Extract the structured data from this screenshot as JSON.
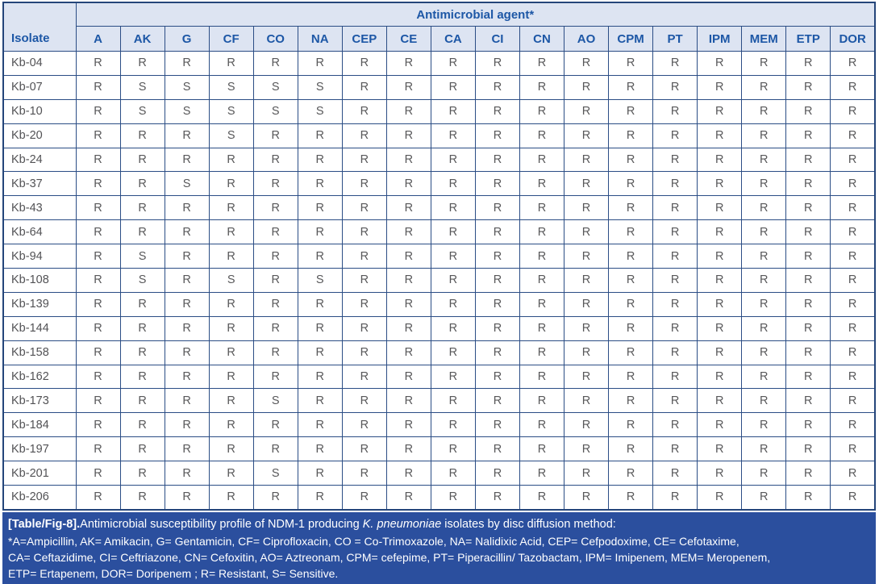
{
  "table": {
    "header": {
      "isolate_label": "Isolate",
      "group_label": "Antimicrobial agent*",
      "agents": [
        "A",
        "AK",
        "G",
        "CF",
        "CO",
        "NA",
        "CEP",
        "CE",
        "CA",
        "CI",
        "CN",
        "AO",
        "CPM",
        "PT",
        "IPM",
        "MEM",
        "ETP",
        "DOR"
      ]
    },
    "rows": [
      {
        "isolate": "Kb-04",
        "values": [
          "R",
          "R",
          "R",
          "R",
          "R",
          "R",
          "R",
          "R",
          "R",
          "R",
          "R",
          "R",
          "R",
          "R",
          "R",
          "R",
          "R",
          "R"
        ]
      },
      {
        "isolate": "Kb-07",
        "values": [
          "R",
          "S",
          "S",
          "S",
          "S",
          "S",
          "R",
          "R",
          "R",
          "R",
          "R",
          "R",
          "R",
          "R",
          "R",
          "R",
          "R",
          "R"
        ]
      },
      {
        "isolate": "Kb-10",
        "values": [
          "R",
          "S",
          "S",
          "S",
          "S",
          "S",
          "R",
          "R",
          "R",
          "R",
          "R",
          "R",
          "R",
          "R",
          "R",
          "R",
          "R",
          "R"
        ]
      },
      {
        "isolate": "Kb-20",
        "values": [
          "R",
          "R",
          "R",
          "S",
          "R",
          "R",
          "R",
          "R",
          "R",
          "R",
          "R",
          "R",
          "R",
          "R",
          "R",
          "R",
          "R",
          "R"
        ]
      },
      {
        "isolate": "Kb-24",
        "values": [
          "R",
          "R",
          "R",
          "R",
          "R",
          "R",
          "R",
          "R",
          "R",
          "R",
          "R",
          "R",
          "R",
          "R",
          "R",
          "R",
          "R",
          "R"
        ]
      },
      {
        "isolate": "Kb-37",
        "values": [
          "R",
          "R",
          "S",
          "R",
          "R",
          "R",
          "R",
          "R",
          "R",
          "R",
          "R",
          "R",
          "R",
          "R",
          "R",
          "R",
          "R",
          "R"
        ]
      },
      {
        "isolate": "Kb-43",
        "values": [
          "R",
          "R",
          "R",
          "R",
          "R",
          "R",
          "R",
          "R",
          "R",
          "R",
          "R",
          "R",
          "R",
          "R",
          "R",
          "R",
          "R",
          "R"
        ]
      },
      {
        "isolate": "Kb-64",
        "values": [
          "R",
          "R",
          "R",
          "R",
          "R",
          "R",
          "R",
          "R",
          "R",
          "R",
          "R",
          "R",
          "R",
          "R",
          "R",
          "R",
          "R",
          "R"
        ]
      },
      {
        "isolate": "Kb-94",
        "values": [
          "R",
          "S",
          "R",
          "R",
          "R",
          "R",
          "R",
          "R",
          "R",
          "R",
          "R",
          "R",
          "R",
          "R",
          "R",
          "R",
          "R",
          "R"
        ]
      },
      {
        "isolate": "Kb-108",
        "values": [
          "R",
          "S",
          "R",
          "S",
          "R",
          "S",
          "R",
          "R",
          "R",
          "R",
          "R",
          "R",
          "R",
          "R",
          "R",
          "R",
          "R",
          "R"
        ]
      },
      {
        "isolate": "Kb-139",
        "values": [
          "R",
          "R",
          "R",
          "R",
          "R",
          "R",
          "R",
          "R",
          "R",
          "R",
          "R",
          "R",
          "R",
          "R",
          "R",
          "R",
          "R",
          "R"
        ]
      },
      {
        "isolate": "Kb-144",
        "values": [
          "R",
          "R",
          "R",
          "R",
          "R",
          "R",
          "R",
          "R",
          "R",
          "R",
          "R",
          "R",
          "R",
          "R",
          "R",
          "R",
          "R",
          "R"
        ]
      },
      {
        "isolate": "Kb-158",
        "values": [
          "R",
          "R",
          "R",
          "R",
          "R",
          "R",
          "R",
          "R",
          "R",
          "R",
          "R",
          "R",
          "R",
          "R",
          "R",
          "R",
          "R",
          "R"
        ]
      },
      {
        "isolate": "Kb-162",
        "values": [
          "R",
          "R",
          "R",
          "R",
          "R",
          "R",
          "R",
          "R",
          "R",
          "R",
          "R",
          "R",
          "R",
          "R",
          "R",
          "R",
          "R",
          "R"
        ]
      },
      {
        "isolate": "Kb-173",
        "values": [
          "R",
          "R",
          "R",
          "R",
          "S",
          "R",
          "R",
          "R",
          "R",
          "R",
          "R",
          "R",
          "R",
          "R",
          "R",
          "R",
          "R",
          "R"
        ]
      },
      {
        "isolate": "Kb-184",
        "values": [
          "R",
          "R",
          "R",
          "R",
          "R",
          "R",
          "R",
          "R",
          "R",
          "R",
          "R",
          "R",
          "R",
          "R",
          "R",
          "R",
          "R",
          "R"
        ]
      },
      {
        "isolate": "Kb-197",
        "values": [
          "R",
          "R",
          "R",
          "R",
          "R",
          "R",
          "R",
          "R",
          "R",
          "R",
          "R",
          "R",
          "R",
          "R",
          "R",
          "R",
          "R",
          "R"
        ]
      },
      {
        "isolate": "Kb-201",
        "values": [
          "R",
          "R",
          "R",
          "R",
          "S",
          "R",
          "R",
          "R",
          "R",
          "R",
          "R",
          "R",
          "R",
          "R",
          "R",
          "R",
          "R",
          "R"
        ]
      },
      {
        "isolate": "Kb-206",
        "values": [
          "R",
          "R",
          "R",
          "R",
          "R",
          "R",
          "R",
          "R",
          "R",
          "R",
          "R",
          "R",
          "R",
          "R",
          "R",
          "R",
          "R",
          "R"
        ]
      }
    ]
  },
  "caption": {
    "label": "[Table/Fig-8].",
    "text_before_italic": "Antimicrobial susceptibility profile of NDM-1 producing ",
    "italic": "K. pneumoniae",
    "text_after_italic": " isolates by disc diffusion method:",
    "footnote_lines": [
      "*A=Ampicillin, AK= Amikacin, G= Gentamicin, CF= Ciprofloxacin, CO = Co-Trimoxazole, NA= Nalidixic Acid, CEP= Cefpodoxime, CE= Cefotaxime,",
      "CA= Ceftazidime, CI= Ceftriazone, CN= Cefoxitin, AO= Aztreonam, CPM= cefepime, PT= Piperacillin/ Tazobactam, IPM= Imipenem, MEM= Meropenem,",
      "ETP= Ertapenem, DOR= Doripenem ; R= Resistant, S= Sensitive."
    ]
  },
  "colors": {
    "header_bg": "#dde4f2",
    "header_text": "#1d57a6",
    "inner_border": "#2b4d85",
    "outer_border": "#24457a",
    "cell_text": "#58585a",
    "caption_bg": "#2b4f9e",
    "caption_text": "#ffffff"
  }
}
